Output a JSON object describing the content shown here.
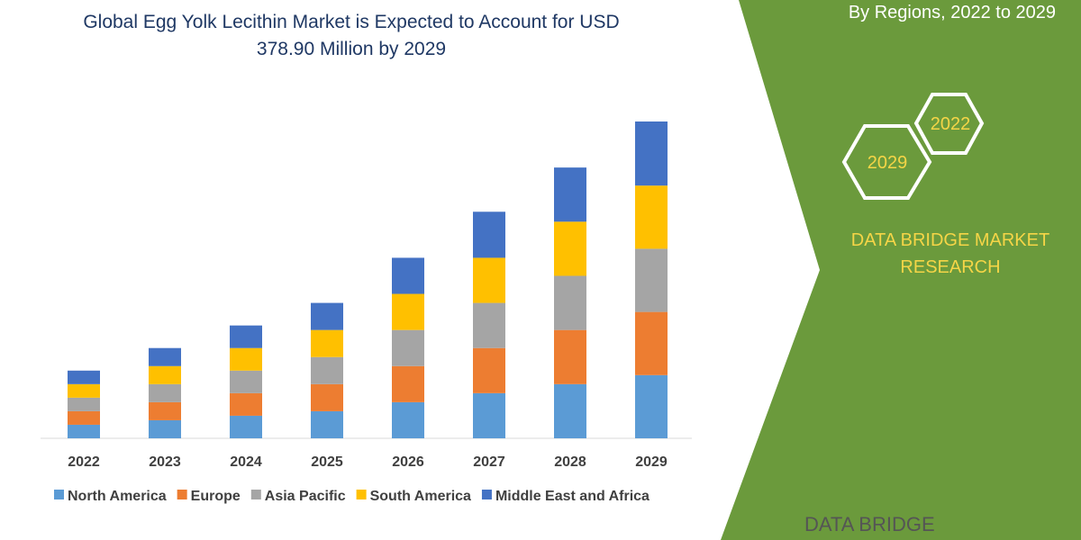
{
  "chart_data": {
    "type": "stacked_bar",
    "title": "Global Egg Yolk Lecithin Market is Expected to Account for USD 378.90 Million by 2029",
    "categories": [
      "2022",
      "2023",
      "2024",
      "2025",
      "2026",
      "2027",
      "2028",
      "2029"
    ],
    "series": [
      {
        "name": "North America",
        "color": "#5b9bd5",
        "values": [
          15,
          20,
          25,
          30,
          40,
          50,
          60,
          70
        ]
      },
      {
        "name": "Europe",
        "color": "#ed7d31",
        "values": [
          15,
          20,
          25,
          30,
          40,
          50,
          60,
          70
        ]
      },
      {
        "name": "Asia Pacific",
        "color": "#a5a5a5",
        "values": [
          15,
          20,
          25,
          30,
          40,
          50,
          60,
          70
        ]
      },
      {
        "name": "South America",
        "color": "#ffc000",
        "values": [
          15,
          20,
          25,
          30,
          40,
          50,
          60,
          70
        ]
      },
      {
        "name": "Middle East and Africa",
        "color": "#4472c4",
        "values": [
          15,
          20,
          25,
          30,
          40,
          51,
          60,
          71
        ]
      }
    ]
  },
  "panel": {
    "subtitle": "By Regions, 2022 to 2029",
    "hex_a": "2022",
    "hex_b": "2029",
    "brand": "DATA BRIDGE MARKET RESEARCH",
    "logo": "DATA BRIDGE"
  }
}
